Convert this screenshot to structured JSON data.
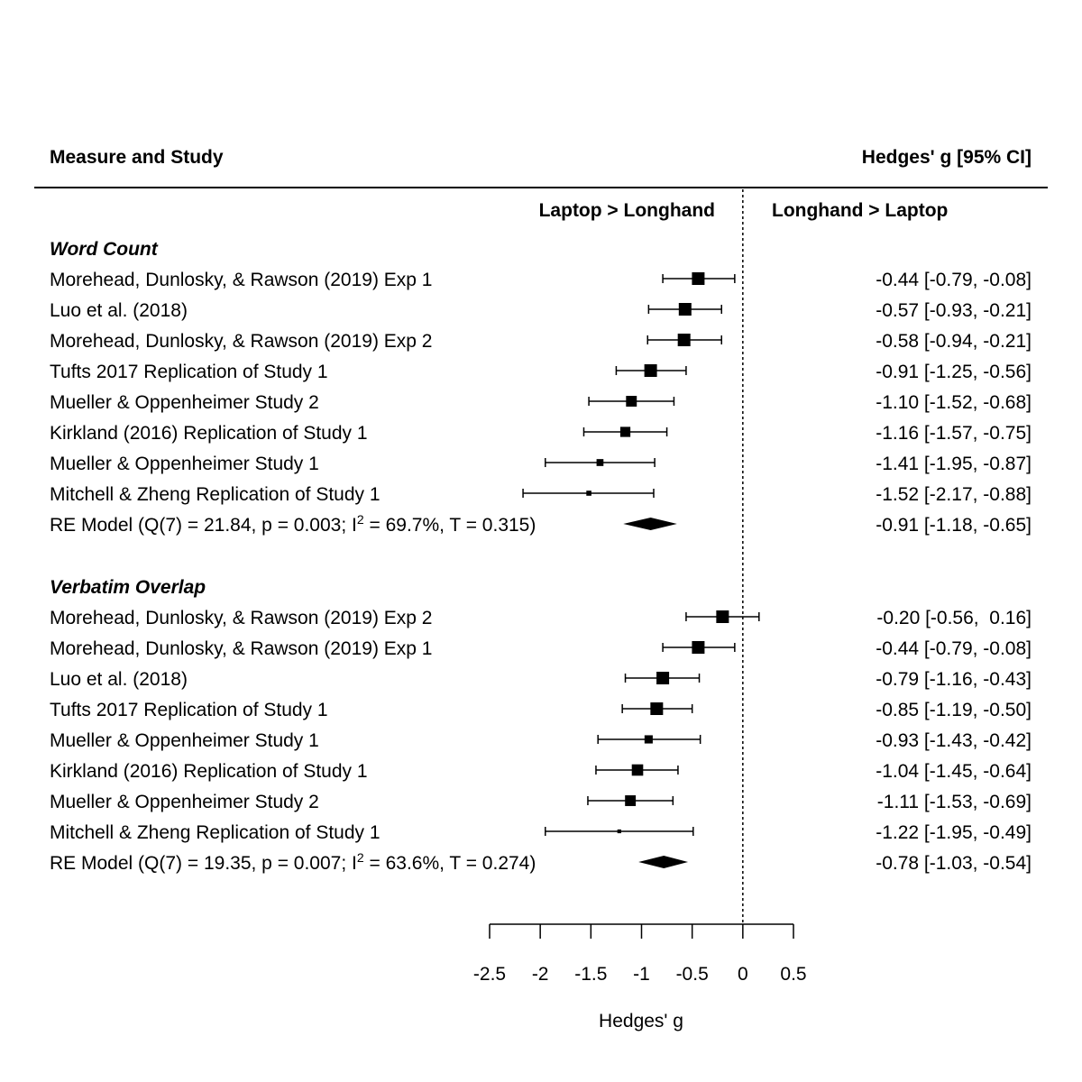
{
  "chart_data": {
    "type": "forest",
    "header_left": "Measure and Study",
    "header_right": "Hedges' g [95% CI]",
    "direction_left": "Laptop > Longhand",
    "direction_right": "Longhand > Laptop",
    "xlabel": "Hedges' g",
    "xlim": [
      -2.5,
      0.5
    ],
    "xticks": [
      -2.5,
      -2,
      -1.5,
      -1,
      -0.5,
      0,
      0.5
    ],
    "xtick_labels": [
      "-2.5",
      "-2",
      "-1.5",
      "-1",
      "-0.5",
      "0",
      "0.5"
    ],
    "reference_line": 0,
    "groups": [
      {
        "name": "Word Count",
        "studies": [
          {
            "label": "Morehead, Dunlosky, & Rawson (2019) Exp 1",
            "est": -0.44,
            "lo": -0.79,
            "hi": -0.08,
            "ci_text": "-0.44 [-0.79, -0.08]",
            "weight": 1.0
          },
          {
            "label": "Luo et al. (2018)",
            "est": -0.57,
            "lo": -0.93,
            "hi": -0.21,
            "ci_text": "-0.57 [-0.93, -0.21]",
            "weight": 1.0
          },
          {
            "label": "Morehead, Dunlosky, & Rawson (2019) Exp 2",
            "est": -0.58,
            "lo": -0.94,
            "hi": -0.21,
            "ci_text": "-0.58 [-0.94, -0.21]",
            "weight": 1.0
          },
          {
            "label": "Tufts 2017 Replication of Study 1",
            "est": -0.91,
            "lo": -1.25,
            "hi": -0.56,
            "ci_text": "-0.91 [-1.25, -0.56]",
            "weight": 1.0
          },
          {
            "label": "Mueller & Oppenheimer Study 2",
            "est": -1.1,
            "lo": -1.52,
            "hi": -0.68,
            "ci_text": "-1.10 [-1.52, -0.68]",
            "weight": 0.85
          },
          {
            "label": "Kirkland (2016) Replication of Study 1",
            "est": -1.16,
            "lo": -1.57,
            "hi": -0.75,
            "ci_text": "-1.16 [-1.57, -0.75]",
            "weight": 0.8
          },
          {
            "label": "Mueller & Oppenheimer Study 1",
            "est": -1.41,
            "lo": -1.95,
            "hi": -0.87,
            "ci_text": "-1.41 [-1.95, -0.87]",
            "weight": 0.55
          },
          {
            "label": "Mitchell & Zheng Replication of Study 1",
            "est": -1.52,
            "lo": -2.17,
            "hi": -0.88,
            "ci_text": "-1.52 [-2.17, -0.88]",
            "weight": 0.4
          }
        ],
        "summary": {
          "label_pre": "RE Model (Q(7) = 21.84, p = 0.003; I",
          "label_sup": "2",
          "label_post": " = 69.7%, T = 0.315)",
          "est": -0.91,
          "lo": -1.18,
          "hi": -0.65,
          "ci_text": "-0.91 [-1.18, -0.65]"
        }
      },
      {
        "name": "Verbatim Overlap",
        "studies": [
          {
            "label": "Morehead, Dunlosky, & Rawson (2019) Exp 2",
            "est": -0.2,
            "lo": -0.56,
            "hi": 0.16,
            "ci_text": "-0.20 [-0.56,  0.16]",
            "weight": 1.0
          },
          {
            "label": "Morehead, Dunlosky, & Rawson (2019) Exp 1",
            "est": -0.44,
            "lo": -0.79,
            "hi": -0.08,
            "ci_text": "-0.44 [-0.79, -0.08]",
            "weight": 1.0
          },
          {
            "label": "Luo et al. (2018)",
            "est": -0.79,
            "lo": -1.16,
            "hi": -0.43,
            "ci_text": "-0.79 [-1.16, -0.43]",
            "weight": 1.0
          },
          {
            "label": "Tufts 2017 Replication of Study 1",
            "est": -0.85,
            "lo": -1.19,
            "hi": -0.5,
            "ci_text": "-0.85 [-1.19, -0.50]",
            "weight": 1.0
          },
          {
            "label": "Mueller & Oppenheimer Study 1",
            "est": -0.93,
            "lo": -1.43,
            "hi": -0.42,
            "ci_text": "-0.93 [-1.43, -0.42]",
            "weight": 0.65
          },
          {
            "label": "Kirkland (2016) Replication of Study 1",
            "est": -1.04,
            "lo": -1.45,
            "hi": -0.64,
            "ci_text": "-1.04 [-1.45, -0.64]",
            "weight": 0.9
          },
          {
            "label": "Mueller & Oppenheimer Study 2",
            "est": -1.11,
            "lo": -1.53,
            "hi": -0.69,
            "ci_text": "-1.11 [-1.53, -0.69]",
            "weight": 0.85
          },
          {
            "label": "Mitchell & Zheng Replication of Study 1",
            "est": -1.22,
            "lo": -1.95,
            "hi": -0.49,
            "ci_text": "-1.22 [-1.95, -0.49]",
            "weight": 0.3
          }
        ],
        "summary": {
          "label_pre": "RE Model (Q(7) = 19.35, p = 0.007; I",
          "label_sup": "2",
          "label_post": " = 63.6%, T = 0.274)",
          "est": -0.78,
          "lo": -1.03,
          "hi": -0.54,
          "ci_text": "-0.78 [-1.03, -0.54]"
        }
      }
    ]
  }
}
